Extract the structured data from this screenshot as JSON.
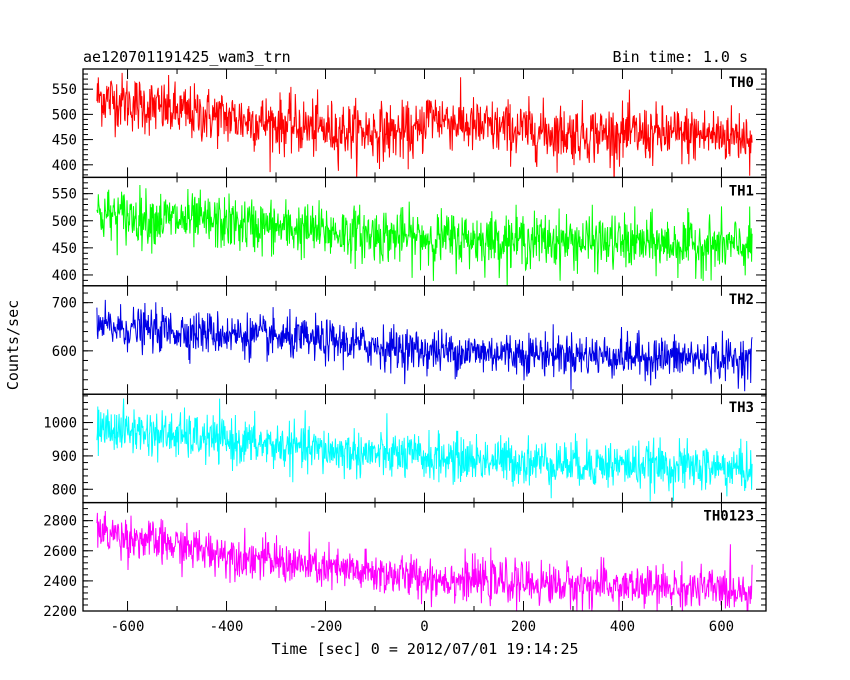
{
  "chart_data": {
    "type": "line",
    "title_left": "ae120701191425_wam3_trn",
    "title_right": "Bin time: 1.0 s",
    "xlabel": "Time [sec] 0 = 2012/07/01 19:14:25",
    "ylabel": "Counts/sec",
    "xlim": [
      -690,
      690
    ],
    "xticks": [
      -600,
      -400,
      -200,
      0,
      200,
      400,
      600
    ],
    "x_start": -662,
    "x_end": 662,
    "bin_time": 1.0,
    "grid": false,
    "panels": [
      {
        "name": "TH0",
        "color": "#ff0000",
        "ylim": [
          375,
          590
        ],
        "yticks": [
          400,
          450,
          500,
          550
        ],
        "trend": [
          [
            -662,
            535
          ],
          [
            -500,
            505
          ],
          [
            -200,
            470
          ],
          [
            -10,
            462
          ],
          [
            5,
            500
          ],
          [
            100,
            475
          ],
          [
            300,
            462
          ],
          [
            662,
            458
          ]
        ],
        "noise": 28
      },
      {
        "name": "TH1",
        "color": "#00ff00",
        "ylim": [
          380,
          580
        ],
        "yticks": [
          400,
          450,
          500,
          550
        ],
        "trend": [
          [
            -662,
            512
          ],
          [
            -400,
            495
          ],
          [
            -200,
            480
          ],
          [
            0,
            468
          ],
          [
            300,
            462
          ],
          [
            662,
            452
          ]
        ],
        "noise": 25
      },
      {
        "name": "TH2",
        "color": "#0000e6",
        "ylim": [
          510,
          735
        ],
        "yticks": [
          600,
          700
        ],
        "trend": [
          [
            -662,
            650
          ],
          [
            -400,
            635
          ],
          [
            -200,
            620
          ],
          [
            0,
            600
          ],
          [
            300,
            592
          ],
          [
            662,
            582
          ]
        ],
        "noise": 22
      },
      {
        "name": "TH3",
        "color": "#00ffff",
        "ylim": [
          760,
          1085
        ],
        "yticks": [
          800,
          900,
          1000
        ],
        "trend": [
          [
            -662,
            985
          ],
          [
            -400,
            945
          ],
          [
            -200,
            915
          ],
          [
            0,
            895
          ],
          [
            300,
            878
          ],
          [
            662,
            860
          ]
        ],
        "noise": 35
      },
      {
        "name": "TH0123",
        "color": "#ff00ff",
        "ylim": [
          2200,
          2920
        ],
        "yticks": [
          2200,
          2400,
          2600,
          2800
        ],
        "trend": [
          [
            -662,
            2730
          ],
          [
            -500,
            2630
          ],
          [
            -200,
            2480
          ],
          [
            0,
            2420
          ],
          [
            300,
            2370
          ],
          [
            662,
            2340
          ]
        ],
        "noise": 70
      }
    ]
  }
}
